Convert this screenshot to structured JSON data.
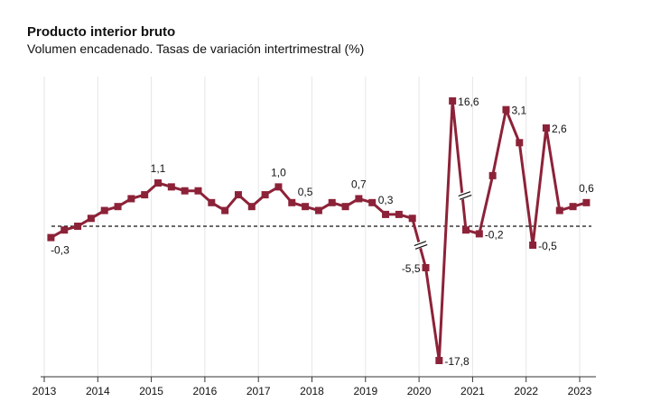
{
  "chart_data": {
    "type": "line",
    "title": "Producto interior bruto",
    "subtitle": "Volumen encadenado. Tasas de variación intertrimestral (%)",
    "xlabel": "",
    "ylabel": "",
    "x_ticks": [
      "2013",
      "2014",
      "2015",
      "2016",
      "2017",
      "2018",
      "2019",
      "2020",
      "2021",
      "2022",
      "2023"
    ],
    "x": [
      2013.125,
      2013.375,
      2013.625,
      2013.875,
      2014.125,
      2014.375,
      2014.625,
      2014.875,
      2015.125,
      2015.375,
      2015.625,
      2015.875,
      2016.125,
      2016.375,
      2016.625,
      2016.875,
      2017.125,
      2017.375,
      2017.625,
      2017.875,
      2018.125,
      2018.375,
      2018.625,
      2018.875,
      2019.125,
      2019.375,
      2019.625,
      2019.875,
      2020.125,
      2020.375,
      2020.625,
      2020.875,
      2021.125,
      2021.375,
      2021.625,
      2021.875,
      2022.125,
      2022.375,
      2022.625,
      2022.875,
      2023.125
    ],
    "values": [
      -0.3,
      -0.1,
      0.0,
      0.2,
      0.4,
      0.5,
      0.7,
      0.8,
      1.1,
      1.0,
      0.9,
      0.9,
      0.6,
      0.4,
      0.8,
      0.5,
      0.8,
      1.0,
      0.6,
      0.5,
      0.4,
      0.6,
      0.5,
      0.7,
      0.6,
      0.3,
      0.3,
      0.2,
      -5.5,
      -17.8,
      16.6,
      -0.1,
      -0.2,
      1.3,
      3.1,
      2.2,
      -0.5,
      2.6,
      0.4,
      0.5,
      0.6
    ],
    "data_labels": [
      {
        "index": 0,
        "text": "-0,3"
      },
      {
        "index": 8,
        "text": "1,1"
      },
      {
        "index": 17,
        "text": "1,0"
      },
      {
        "index": 19,
        "text": "0,5"
      },
      {
        "index": 23,
        "text": "0,7"
      },
      {
        "index": 25,
        "text": "0,3"
      },
      {
        "index": 28,
        "text": "-5,5"
      },
      {
        "index": 29,
        "text": "-17,8"
      },
      {
        "index": 30,
        "text": "16,6"
      },
      {
        "index": 32,
        "text": "-0,2"
      },
      {
        "index": 34,
        "text": "3,1"
      },
      {
        "index": 36,
        "text": "-0,5"
      },
      {
        "index": 37,
        "text": "2,6"
      },
      {
        "index": 40,
        "text": "0,6"
      }
    ],
    "reference_line": 0,
    "axis_break": true,
    "grid": "vertical",
    "legend": "none",
    "colors": {
      "series": "#8c2238",
      "grid": "#e6e6e6",
      "axis": "#333333"
    }
  }
}
